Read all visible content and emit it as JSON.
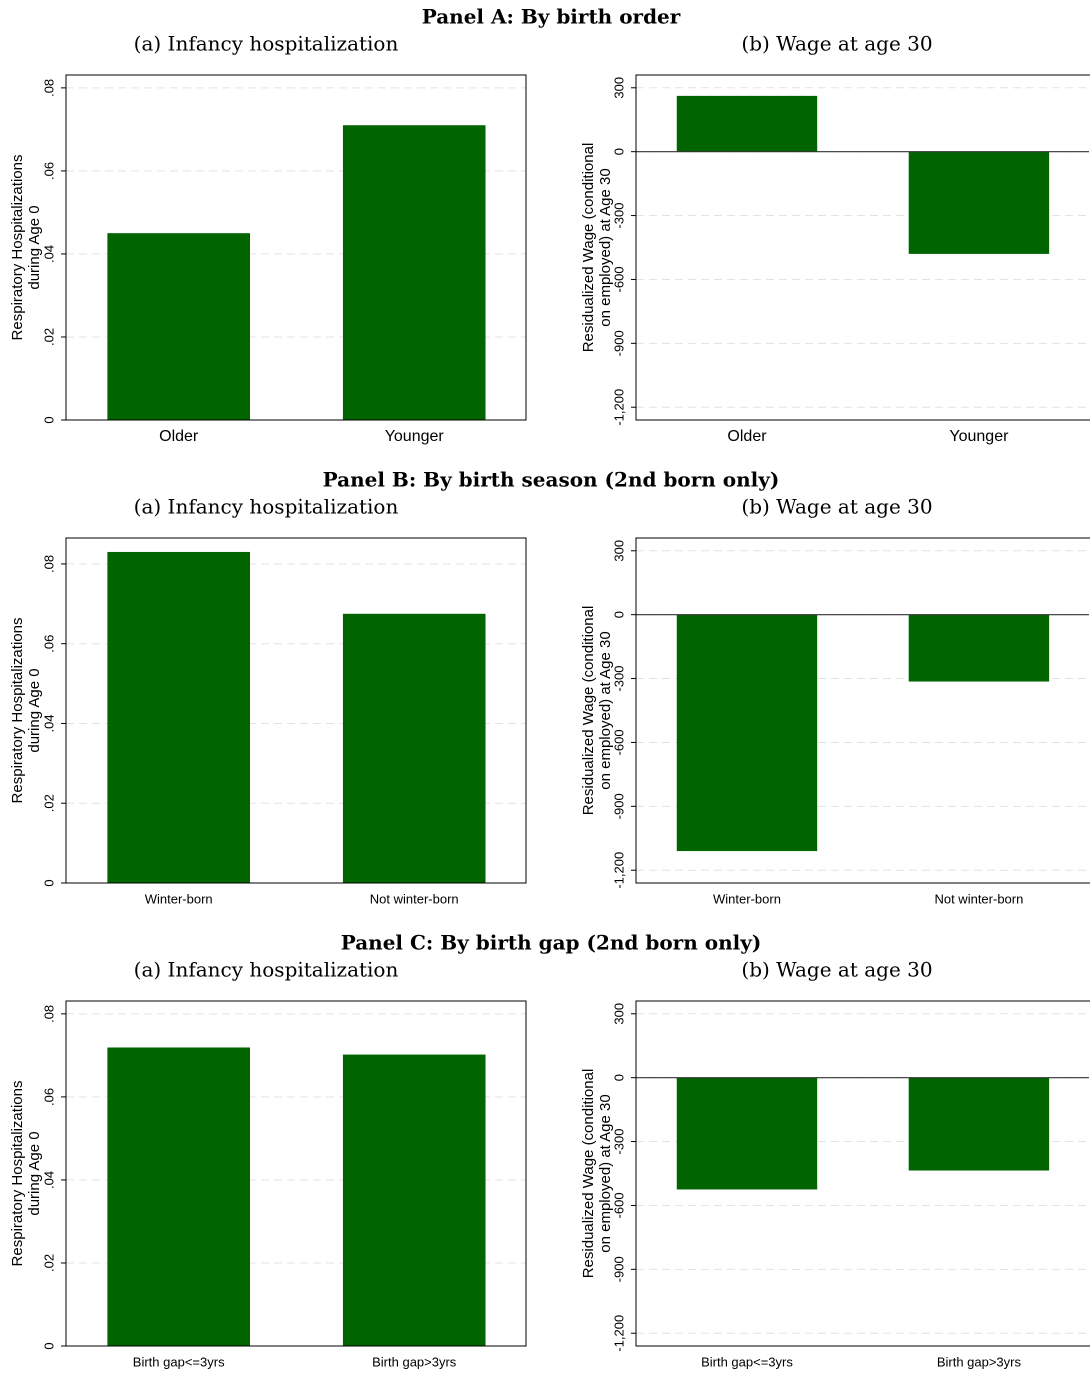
{
  "panels": [
    {
      "title": "Panel A: By birth order"
    },
    {
      "title": "Panel B: By birth season (2nd born only)"
    },
    {
      "title": "Panel C: By birth gap (2nd born only)"
    }
  ],
  "chart_data": [
    {
      "type": "bar",
      "title": "(a) Infancy hospitalization",
      "ylabel": [
        "Respiratory Hospitalizations",
        "during Age 0"
      ],
      "categories": [
        "Older",
        "Younger"
      ],
      "values": [
        0.045,
        0.071
      ],
      "color": "#006400",
      "ylim": [
        0,
        0.0831
      ],
      "yticks": [
        0,
        {
          "value": 0.02,
          "label": ".02"
        },
        {
          "value": 0.04,
          "label": ".04"
        },
        {
          "value": 0.06,
          "label": ".06"
        },
        {
          "value": 0.08,
          "label": ".08"
        }
      ],
      "grid": true
    },
    {
      "type": "bar",
      "title": "(b) Wage at age 30",
      "ylabel": [
        "Residualized Wage (conditional",
        "on employed) at Age 30"
      ],
      "categories": [
        "Older",
        "Younger"
      ],
      "values": [
        262,
        -480
      ],
      "color": "#006400",
      "ylim": [
        -1260,
        360
      ],
      "yticks": [
        {
          "value": -1200,
          "label": "-1,200"
        },
        -900,
        -600,
        -300,
        0,
        300
      ],
      "grid": true
    },
    {
      "type": "bar",
      "title": "(a) Infancy hospitalization",
      "ylabel": [
        "Respiratory Hospitalizations",
        "during Age 0"
      ],
      "categories": [
        "Winter-born",
        "Not winter-born"
      ],
      "values": [
        0.083,
        0.0675
      ],
      "color": "#006400",
      "ylim": [
        0,
        0.0865
      ],
      "yticks": [
        0,
        {
          "value": 0.02,
          "label": ".02"
        },
        {
          "value": 0.04,
          "label": ".04"
        },
        {
          "value": 0.06,
          "label": ".06"
        },
        {
          "value": 0.08,
          "label": ".08"
        }
      ],
      "grid": true
    },
    {
      "type": "bar",
      "title": "(b) Wage at age 30",
      "ylabel": [
        "Residualized Wage (conditional",
        "on employed) at Age 30"
      ],
      "categories": [
        "Winter-born",
        "Not winter-born"
      ],
      "values": [
        -1110,
        -314
      ],
      "color": "#006400",
      "ylim": [
        -1260,
        360
      ],
      "yticks": [
        {
          "value": -1200,
          "label": "-1,200"
        },
        -900,
        -600,
        -300,
        0,
        300
      ],
      "grid": true
    },
    {
      "type": "bar",
      "title": "(a) Infancy hospitalization",
      "ylabel": [
        "Respiratory Hospitalizations",
        "during Age 0"
      ],
      "categories": [
        "Birth gap<=3yrs",
        "Birth gap>3yrs"
      ],
      "values": [
        0.0719,
        0.0702
      ],
      "color": "#006400",
      "ylim": [
        0,
        0.0831
      ],
      "yticks": [
        0,
        {
          "value": 0.02,
          "label": ".02"
        },
        {
          "value": 0.04,
          "label": ".04"
        },
        {
          "value": 0.06,
          "label": ".06"
        },
        {
          "value": 0.08,
          "label": ".08"
        }
      ],
      "grid": true
    },
    {
      "type": "bar",
      "title": "(b) Wage at age 30",
      "ylabel": [
        "Residualized Wage (conditional",
        "on employed) at Age 30"
      ],
      "categories": [
        "Birth gap<=3yrs",
        "Birth gap>3yrs"
      ],
      "values": [
        -525,
        -436
      ],
      "color": "#006400",
      "ylim": [
        -1260,
        360
      ],
      "yticks": [
        {
          "value": -1200,
          "label": "-1,200"
        },
        -900,
        -600,
        -300,
        0,
        300
      ],
      "grid": true
    }
  ]
}
